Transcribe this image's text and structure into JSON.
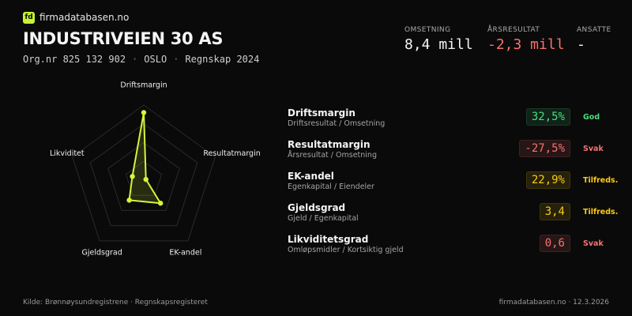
{
  "header": {
    "logo": "fd",
    "brand": "firmadatabasen.no",
    "title": "INDUSTRIVEIEN 30 AS",
    "meta": [
      "Org.nr 825 132 902",
      "OSLO",
      "Regnskap 2024"
    ]
  },
  "stats": [
    {
      "label": "OMSETNING",
      "value": "8,4 mill",
      "tone": "neutral"
    },
    {
      "label": "ÅRSRESULTAT",
      "value": "-2,3 mill",
      "tone": "bad"
    },
    {
      "label": "ANSATTE",
      "value": "-",
      "tone": "neutral"
    }
  ],
  "chart_data": {
    "type": "radar",
    "categories": [
      "Driftsmargin",
      "Resultatmargin",
      "EK-andel",
      "Gjeldsgrad",
      "Likviditet"
    ],
    "values": [
      90,
      3,
      38,
      33,
      16
    ],
    "color": "#d4f53c",
    "rlim": [
      0,
      100
    ],
    "rticks": [
      25,
      50,
      75,
      100
    ],
    "grid": true
  },
  "metrics": [
    {
      "name": "Driftsmargin",
      "formula": "Driftsresultat / Omsetning",
      "value": "32,5%",
      "status": "God",
      "tone": "good"
    },
    {
      "name": "Resultatmargin",
      "formula": "Årsresultat / Omsetning",
      "value": "-27,5%",
      "status": "Svak",
      "tone": "bad"
    },
    {
      "name": "EK-andel",
      "formula": "Egenkapital / Eiendeler",
      "value": "22,9%",
      "status": "Tilfreds.",
      "tone": "mid"
    },
    {
      "name": "Gjeldsgrad",
      "formula": "Gjeld / Egenkapital",
      "value": "3,4",
      "status": "Tilfreds.",
      "tone": "mid"
    },
    {
      "name": "Likviditetsgrad",
      "formula": "Omløpsmidler / Kortsiktig gjeld",
      "value": "0,6",
      "status": "Svak",
      "tone": "bad"
    }
  ],
  "footer": {
    "source": "Kilde: Brønnøysundregistrene · Regnskapsregisteret",
    "site": "firmadatabasen.no · 12.3.2026"
  }
}
